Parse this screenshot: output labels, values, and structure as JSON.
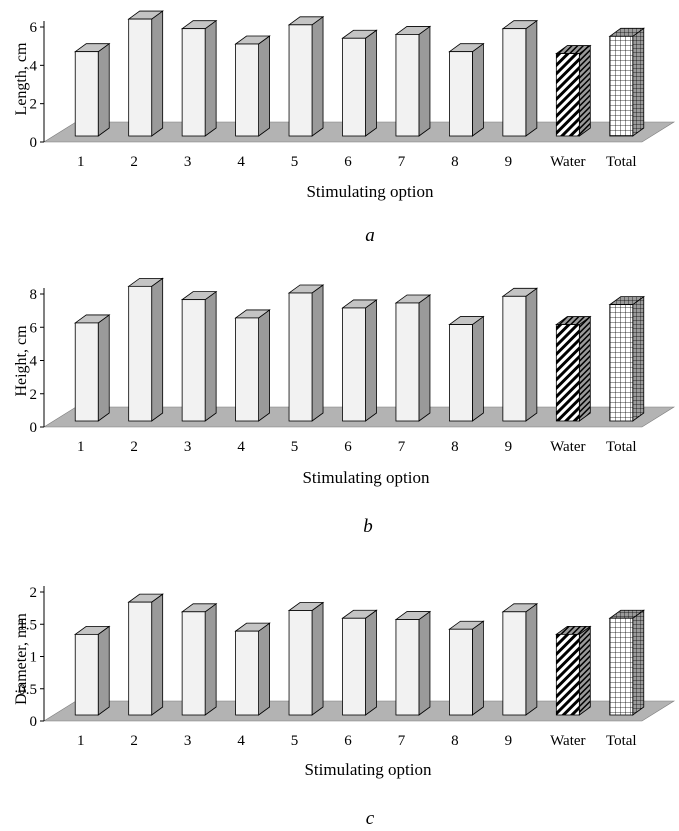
{
  "chart_data": [
    {
      "type": "bar",
      "categories": [
        "1",
        "2",
        "3",
        "4",
        "5",
        "6",
        "7",
        "8",
        "9",
        "Water",
        "Total"
      ],
      "values": [
        4.4,
        6.1,
        5.6,
        4.8,
        5.8,
        5.1,
        5.3,
        4.4,
        5.6,
        4.3,
        5.2
      ],
      "xlabel": "Stimulating option",
      "ylabel": "Length, cm",
      "ylim": [
        0,
        6
      ],
      "yticks": [
        "0",
        "2",
        "4",
        "6"
      ],
      "caption": "a",
      "grid": false
    },
    {
      "type": "bar",
      "categories": [
        "1",
        "2",
        "3",
        "4",
        "5",
        "6",
        "7",
        "8",
        "9",
        "Water",
        "Total"
      ],
      "values": [
        5.9,
        8.1,
        7.3,
        6.2,
        7.7,
        6.8,
        7.1,
        5.8,
        7.5,
        5.8,
        7.0
      ],
      "xlabel": "Stimulating option",
      "ylabel": "Height, cm",
      "ylim": [
        0,
        8
      ],
      "yticks": [
        "0",
        "2",
        "4",
        "6",
        "8"
      ],
      "caption": "b",
      "grid": false
    },
    {
      "type": "bar",
      "categories": [
        "1",
        "2",
        "3",
        "4",
        "5",
        "6",
        "7",
        "8",
        "9",
        "Water",
        "Total"
      ],
      "values": [
        1.25,
        1.75,
        1.6,
        1.3,
        1.62,
        1.5,
        1.48,
        1.33,
        1.6,
        1.25,
        1.5
      ],
      "xlabel": "Stimulating option",
      "ylabel": "Diameter, mm",
      "ylim": [
        0,
        2
      ],
      "yticks": [
        "0",
        "0.5",
        "1",
        "1.5",
        "2"
      ],
      "caption": "c",
      "grid": false
    }
  ],
  "patterns": {
    "bar_fill": "#f2f2f2",
    "bar_side": "#9a9a9a",
    "bar_top": "#c4c4c4",
    "floor": "#b3b3b3",
    "water": "diagonal-hatch",
    "total": "grid-hatch"
  }
}
